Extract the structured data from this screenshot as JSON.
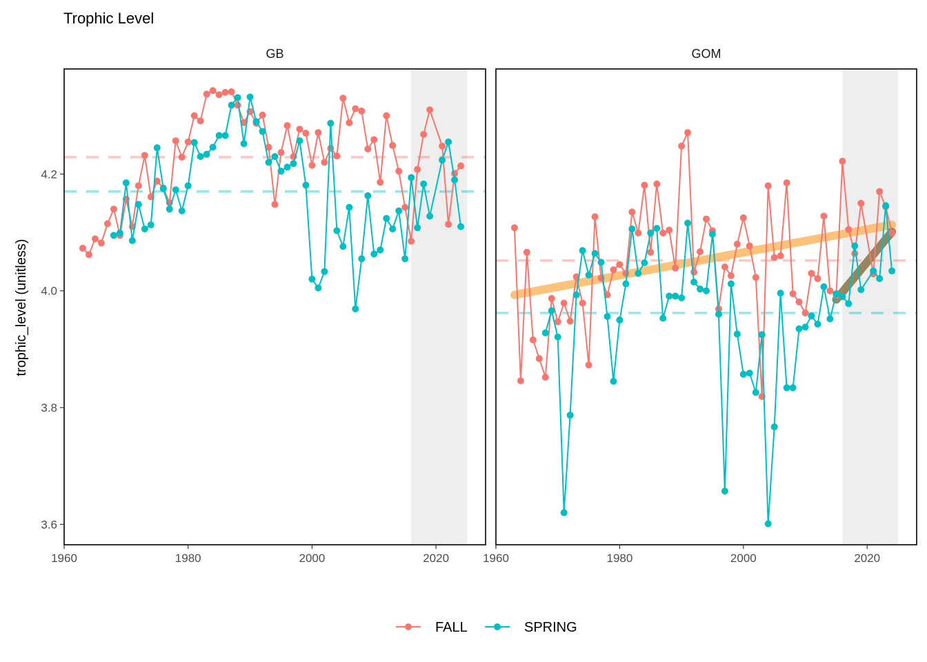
{
  "colors": {
    "FALL": "#F8766D",
    "SPRING": "#00BFC4",
    "trend_long": "#FDB863",
    "trend_short": "#7F6A3A",
    "shade": "#EEEEEE"
  },
  "chart_data": {
    "type": "line",
    "title": "Trophic Level",
    "ylabel": "trophic_level (unitless)",
    "xlabel": "",
    "xlim": [
      1960,
      2028
    ],
    "ylim": [
      3.565,
      4.38
    ],
    "x_ticks": [
      1960,
      1980,
      2000,
      2020
    ],
    "y_ticks": [
      3.6,
      3.8,
      4.0,
      4.2
    ],
    "y_tick_labels": [
      "3.6",
      "3.8",
      "4.0",
      "4.2"
    ],
    "shaded_x_range": [
      2016,
      2025
    ],
    "legend": {
      "position": "bottom",
      "entries": [
        "FALL",
        "SPRING"
      ]
    },
    "panels": [
      {
        "name": "GB",
        "series": [
          {
            "name": "FALL",
            "mean": 4.229,
            "x": [
              1963,
              1964,
              1965,
              1966,
              1967,
              1968,
              1969,
              1970,
              1971,
              1972,
              1973,
              1974,
              1975,
              1976,
              1977,
              1978,
              1979,
              1980,
              1981,
              1982,
              1983,
              1984,
              1985,
              1986,
              1987,
              1988,
              1989,
              1990,
              1991,
              1992,
              1993,
              1994,
              1995,
              1996,
              1997,
              1998,
              1999,
              2000,
              2001,
              2002,
              2003,
              2004,
              2005,
              2006,
              2007,
              2008,
              2009,
              2010,
              2011,
              2012,
              2013,
              2014,
              2015,
              2016,
              2017,
              2018,
              2019,
              2021,
              2022,
              2023,
              2024
            ],
            "y": [
              4.073,
              4.062,
              4.089,
              4.082,
              4.115,
              4.14,
              4.095,
              4.157,
              4.11,
              4.18,
              4.232,
              4.161,
              4.188,
              4.176,
              4.151,
              4.257,
              4.229,
              4.255,
              4.3,
              4.291,
              4.337,
              4.343,
              4.336,
              4.34,
              4.341,
              4.318,
              4.288,
              4.307,
              4.287,
              4.301,
              4.246,
              4.148,
              4.237,
              4.283,
              4.23,
              4.277,
              4.27,
              4.215,
              4.271,
              4.22,
              4.244,
              4.231,
              4.33,
              4.288,
              4.312,
              4.308,
              4.243,
              4.259,
              4.186,
              4.3,
              4.249,
              4.205,
              4.143,
              4.085,
              4.208,
              4.268,
              4.31,
              4.248,
              4.114,
              4.201,
              4.214
            ]
          },
          {
            "name": "SPRING",
            "mean": 4.17,
            "x": [
              1968,
              1969,
              1970,
              1971,
              1972,
              1973,
              1974,
              1975,
              1976,
              1977,
              1978,
              1979,
              1980,
              1981,
              1982,
              1983,
              1984,
              1985,
              1986,
              1987,
              1988,
              1989,
              1990,
              1991,
              1992,
              1993,
              1994,
              1995,
              1996,
              1997,
              1998,
              1999,
              2000,
              2001,
              2002,
              2003,
              2004,
              2005,
              2006,
              2007,
              2008,
              2009,
              2010,
              2011,
              2012,
              2013,
              2014,
              2015,
              2016,
              2017,
              2018,
              2019,
              2021,
              2022,
              2023,
              2024
            ],
            "y": [
              4.095,
              4.099,
              4.185,
              4.086,
              4.148,
              4.106,
              4.113,
              4.245,
              4.175,
              4.14,
              4.173,
              4.137,
              4.18,
              4.254,
              4.23,
              4.234,
              4.246,
              4.266,
              4.266,
              4.318,
              4.331,
              4.252,
              4.332,
              4.29,
              4.273,
              4.22,
              4.23,
              4.205,
              4.212,
              4.218,
              4.257,
              4.181,
              4.02,
              4.005,
              4.033,
              4.287,
              4.103,
              4.076,
              4.143,
              3.969,
              4.055,
              4.163,
              4.063,
              4.07,
              4.124,
              4.106,
              4.137,
              4.055,
              4.194,
              4.108,
              4.183,
              4.128,
              4.224,
              4.255,
              4.19,
              4.11
            ]
          }
        ]
      },
      {
        "name": "GOM",
        "series": [
          {
            "name": "FALL",
            "mean": 4.052,
            "x": [
              1963,
              1964,
              1965,
              1966,
              1967,
              1968,
              1969,
              1970,
              1971,
              1972,
              1973,
              1974,
              1975,
              1976,
              1977,
              1978,
              1979,
              1980,
              1981,
              1982,
              1983,
              1984,
              1985,
              1986,
              1987,
              1988,
              1989,
              1990,
              1991,
              1992,
              1993,
              1994,
              1995,
              1996,
              1997,
              1998,
              1999,
              2000,
              2001,
              2002,
              2003,
              2004,
              2005,
              2006,
              2007,
              2008,
              2009,
              2010,
              2011,
              2012,
              2013,
              2014,
              2015,
              2016,
              2017,
              2018,
              2019,
              2021,
              2022,
              2023,
              2024
            ],
            "y": [
              4.108,
              3.846,
              4.066,
              3.916,
              3.884,
              3.852,
              3.987,
              3.947,
              3.979,
              3.948,
              4.024,
              3.979,
              3.873,
              4.127,
              4.022,
              3.993,
              4.036,
              4.045,
              4.03,
              4.135,
              4.099,
              4.181,
              4.066,
              4.183,
              4.099,
              4.104,
              4.039,
              4.248,
              4.271,
              4.032,
              4.067,
              4.123,
              4.103,
              3.969,
              4.041,
              4.026,
              4.08,
              4.125,
              4.077,
              4.023,
              3.819,
              4.18,
              4.057,
              4.06,
              4.185,
              3.995,
              3.981,
              3.962,
              4.03,
              4.021,
              4.128,
              4.0,
              3.992,
              4.222,
              4.105,
              4.064,
              4.15,
              4.029,
              4.17,
              4.144,
              4.099
            ]
          },
          {
            "name": "SPRING",
            "mean": 3.962,
            "x": [
              1968,
              1969,
              1970,
              1971,
              1972,
              1973,
              1974,
              1975,
              1976,
              1977,
              1978,
              1979,
              1980,
              1981,
              1982,
              1983,
              1984,
              1985,
              1986,
              1987,
              1988,
              1989,
              1990,
              1991,
              1992,
              1993,
              1994,
              1995,
              1996,
              1997,
              1998,
              1999,
              2000,
              2001,
              2002,
              2003,
              2004,
              2005,
              2006,
              2007,
              2008,
              2009,
              2010,
              2011,
              2012,
              2013,
              2014,
              2015,
              2016,
              2017,
              2018,
              2019,
              2021,
              2022,
              2023,
              2024
            ],
            "y": [
              3.928,
              3.966,
              3.921,
              3.62,
              3.787,
              3.993,
              4.069,
              4.027,
              4.064,
              4.049,
              3.956,
              3.845,
              3.95,
              4.012,
              4.106,
              4.03,
              4.048,
              4.099,
              4.107,
              3.953,
              3.991,
              3.991,
              3.988,
              4.116,
              4.015,
              4.003,
              4.0,
              4.097,
              3.96,
              3.657,
              4.012,
              3.926,
              3.857,
              3.859,
              3.826,
              3.925,
              3.601,
              3.767,
              3.996,
              3.834,
              3.834,
              3.935,
              3.938,
              3.957,
              3.943,
              4.007,
              3.952,
              3.995,
              3.99,
              3.978,
              4.077,
              4.002,
              4.034,
              4.021,
              4.146,
              4.034
            ]
          }
        ],
        "trends": [
          {
            "kind": "long",
            "x": [
              1963,
              2024
            ],
            "y": [
              3.993,
              4.113
            ]
          },
          {
            "kind": "short",
            "x": [
              2015,
              2024
            ],
            "y": [
              3.985,
              4.101
            ]
          }
        ]
      }
    ]
  }
}
